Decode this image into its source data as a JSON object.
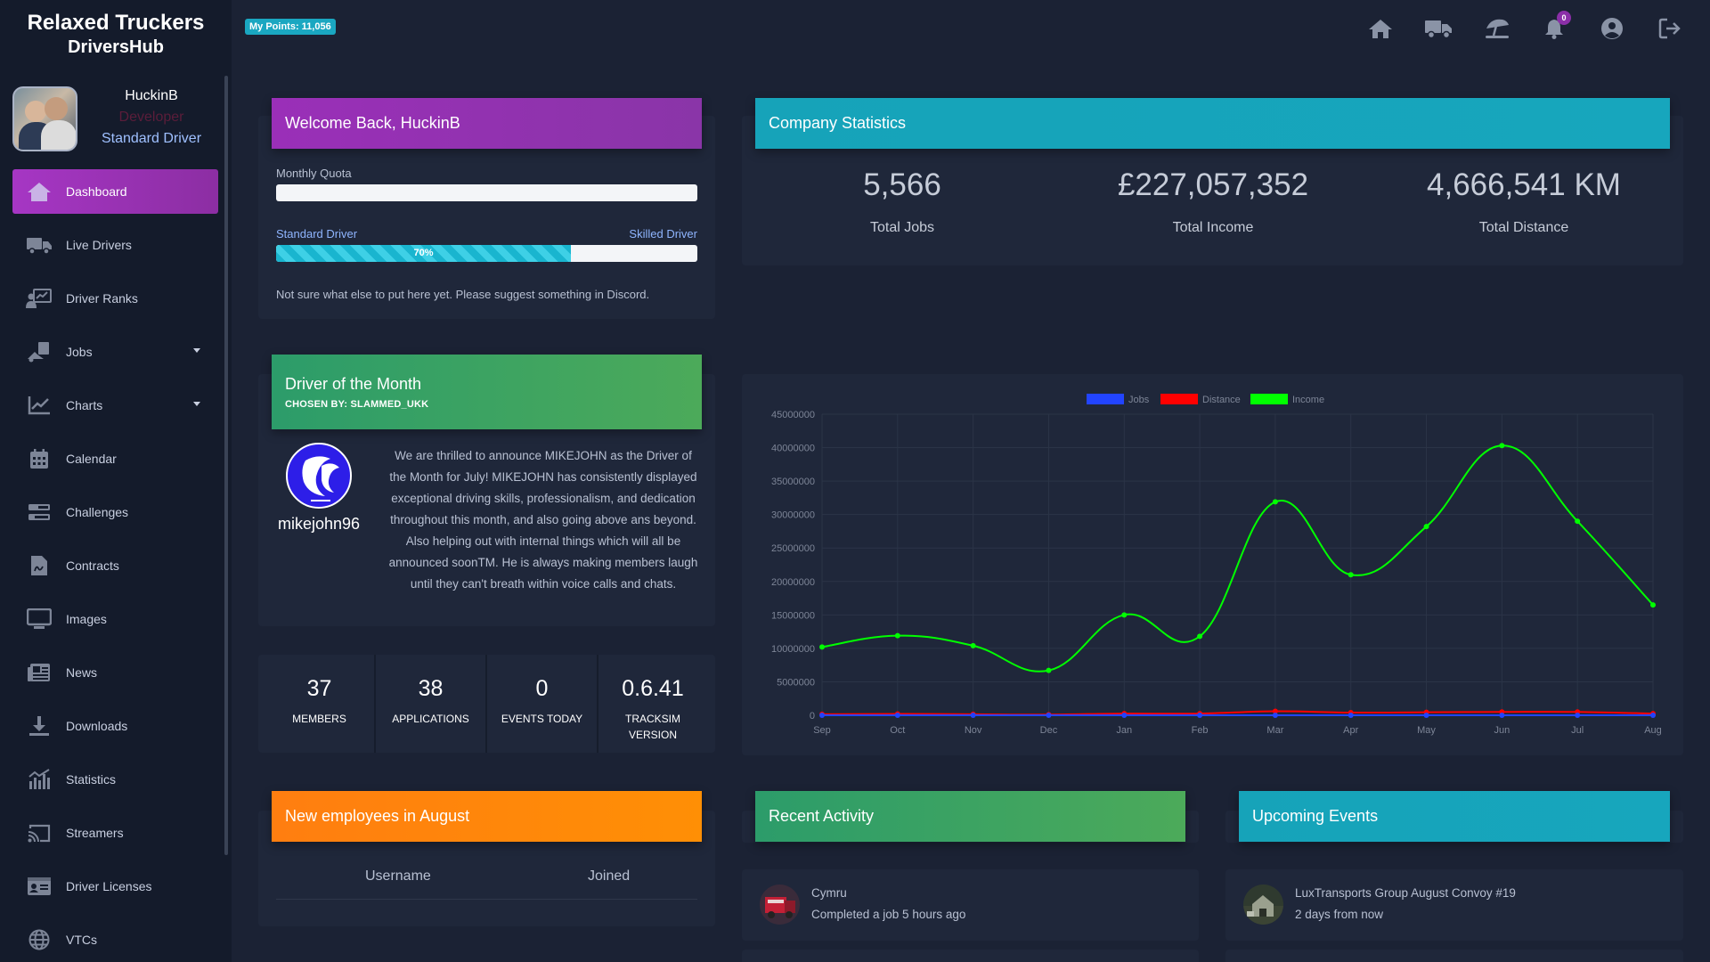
{
  "brand": {
    "line1": "Relaxed Truckers",
    "line2": "DriversHub"
  },
  "profile": {
    "name": "HuckinB",
    "role": "Developer",
    "rank": "Standard Driver"
  },
  "nav": [
    {
      "label": "Dashboard",
      "icon": "home-icon",
      "active": true
    },
    {
      "label": "Live Drivers",
      "icon": "truck-icon"
    },
    {
      "label": "Driver Ranks",
      "icon": "ranks-icon"
    },
    {
      "label": "Jobs",
      "icon": "jobs-icon",
      "dropdown": true
    },
    {
      "label": "Charts",
      "icon": "chart-line-icon",
      "dropdown": true
    },
    {
      "label": "Calendar",
      "icon": "calendar-icon"
    },
    {
      "label": "Challenges",
      "icon": "challenges-icon"
    },
    {
      "label": "Contracts",
      "icon": "contract-icon"
    },
    {
      "label": "Images",
      "icon": "monitor-icon"
    },
    {
      "label": "News",
      "icon": "newspaper-icon"
    },
    {
      "label": "Downloads",
      "icon": "download-icon"
    },
    {
      "label": "Statistics",
      "icon": "statistics-icon"
    },
    {
      "label": "Streamers",
      "icon": "cast-icon"
    },
    {
      "label": "Driver Licenses",
      "icon": "id-card-icon"
    },
    {
      "label": "VTCs",
      "icon": "globe-icon"
    }
  ],
  "topbar": {
    "points": "My Points: 11,056",
    "notifications": "0"
  },
  "welcome": {
    "title": "Welcome Back, HuckinB",
    "quota_label": "Monthly Quota",
    "quota_progress": 0,
    "rank_from": "Standard Driver",
    "rank_to": "Skilled Driver",
    "rank_progress_label": "70%",
    "rank_progress": 0.7,
    "note": "Not sure what else to put here yet. Please suggest something in Discord."
  },
  "company": {
    "title": "Company Statistics",
    "stats": [
      {
        "value": "5,566",
        "label": "Total Jobs"
      },
      {
        "value": "£227,057,352",
        "label": "Total Income"
      },
      {
        "value": "4,666,541 KM",
        "label": "Total Distance"
      }
    ]
  },
  "dotm": {
    "title": "Driver of the Month",
    "subtitle": "CHOSEN BY: SLAMMED_UKK",
    "name": "mikejohn96",
    "text": "We are thrilled to announce MIKEJOHN as the Driver of the Month for July! MIKEJOHN has consistently displayed exceptional driving skills, professionalism, and dedication throughout this month, and also going above ans beyond. Also helping out with internal things which will all be announced soonTM. He is always making members laugh until they can't breath within voice calls and chats."
  },
  "counters": [
    {
      "value": "37",
      "label": "MEMBERS"
    },
    {
      "value": "38",
      "label": "APPLICATIONS"
    },
    {
      "value": "0",
      "label": "EVENTS TODAY"
    },
    {
      "value": "0.6.41",
      "label": "TRACKSIM VERSION"
    }
  ],
  "new_employees": {
    "title": "New employees in August",
    "col_username": "Username",
    "col_joined": "Joined"
  },
  "recent_activity": {
    "title": "Recent Activity",
    "user": "Cymru",
    "text": "Completed a job 5 hours ago"
  },
  "upcoming_events": {
    "title": "Upcoming Events",
    "name": "LuxTransports Group August Convoy #19",
    "when": "2 days from now"
  },
  "colors": {
    "jobs": "#2244ff",
    "distance": "#ff0000",
    "income": "#00ff00"
  },
  "chart_data": {
    "type": "line",
    "x": [
      "Sep",
      "Oct",
      "Nov",
      "Dec",
      "Jan",
      "Feb",
      "Mar",
      "Apr",
      "May",
      "Jun",
      "Jul",
      "Aug"
    ],
    "ylim": [
      0,
      45000000
    ],
    "yticks": [
      "0",
      "5000000",
      "10000000",
      "15000000",
      "20000000",
      "25000000",
      "30000000",
      "35000000",
      "40000000",
      "45000000"
    ],
    "legend": "top",
    "grid": true,
    "series": [
      {
        "name": "Jobs",
        "values": [
          300,
          350,
          320,
          280,
          400,
          420,
          500,
          450,
          470,
          520,
          480,
          400
        ]
      },
      {
        "name": "Distance",
        "values": [
          150000,
          200000,
          150000,
          100000,
          250000,
          250000,
          600000,
          400000,
          450000,
          500000,
          500000,
          250000
        ]
      },
      {
        "name": "Income",
        "values": [
          10200000,
          11900000,
          10400000,
          6700000,
          15000000,
          11800000,
          31900000,
          21000000,
          28200000,
          40300000,
          29000000,
          16500000
        ]
      }
    ]
  }
}
